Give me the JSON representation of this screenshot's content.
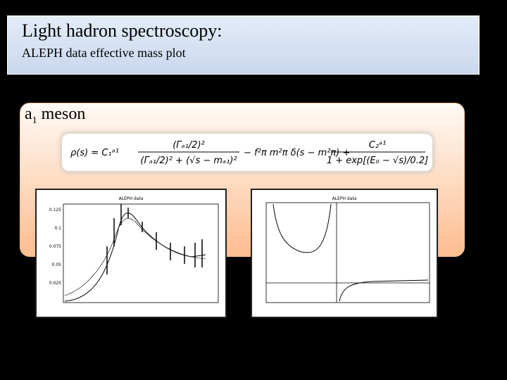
{
  "header": {
    "title": "Light hadron spectroscopy:",
    "subtitle": "ALEPH data effective mass plot"
  },
  "section": {
    "symbol": "a",
    "subscript": "1",
    "text": "meson"
  },
  "formula": {
    "lhs": "ρ(s) = C₁ᵃ¹",
    "num1": "(Γₐ₁/2)²",
    "den1": "(Γₐ₁/2)² + (√s − mₐ₁)²",
    "middle": "− f²π m²π δ(s − m²π) +",
    "num2": "C₂ᵃ¹",
    "den2": "1 + exp[(E₀ − √s)/0.2]"
  },
  "plots": [
    {
      "title": "ALEPH data",
      "yticks": [
        "0.125",
        "0.1",
        "0.075",
        "0.05",
        "0.025"
      ]
    },
    {
      "title": "ALEPH data"
    }
  ]
}
